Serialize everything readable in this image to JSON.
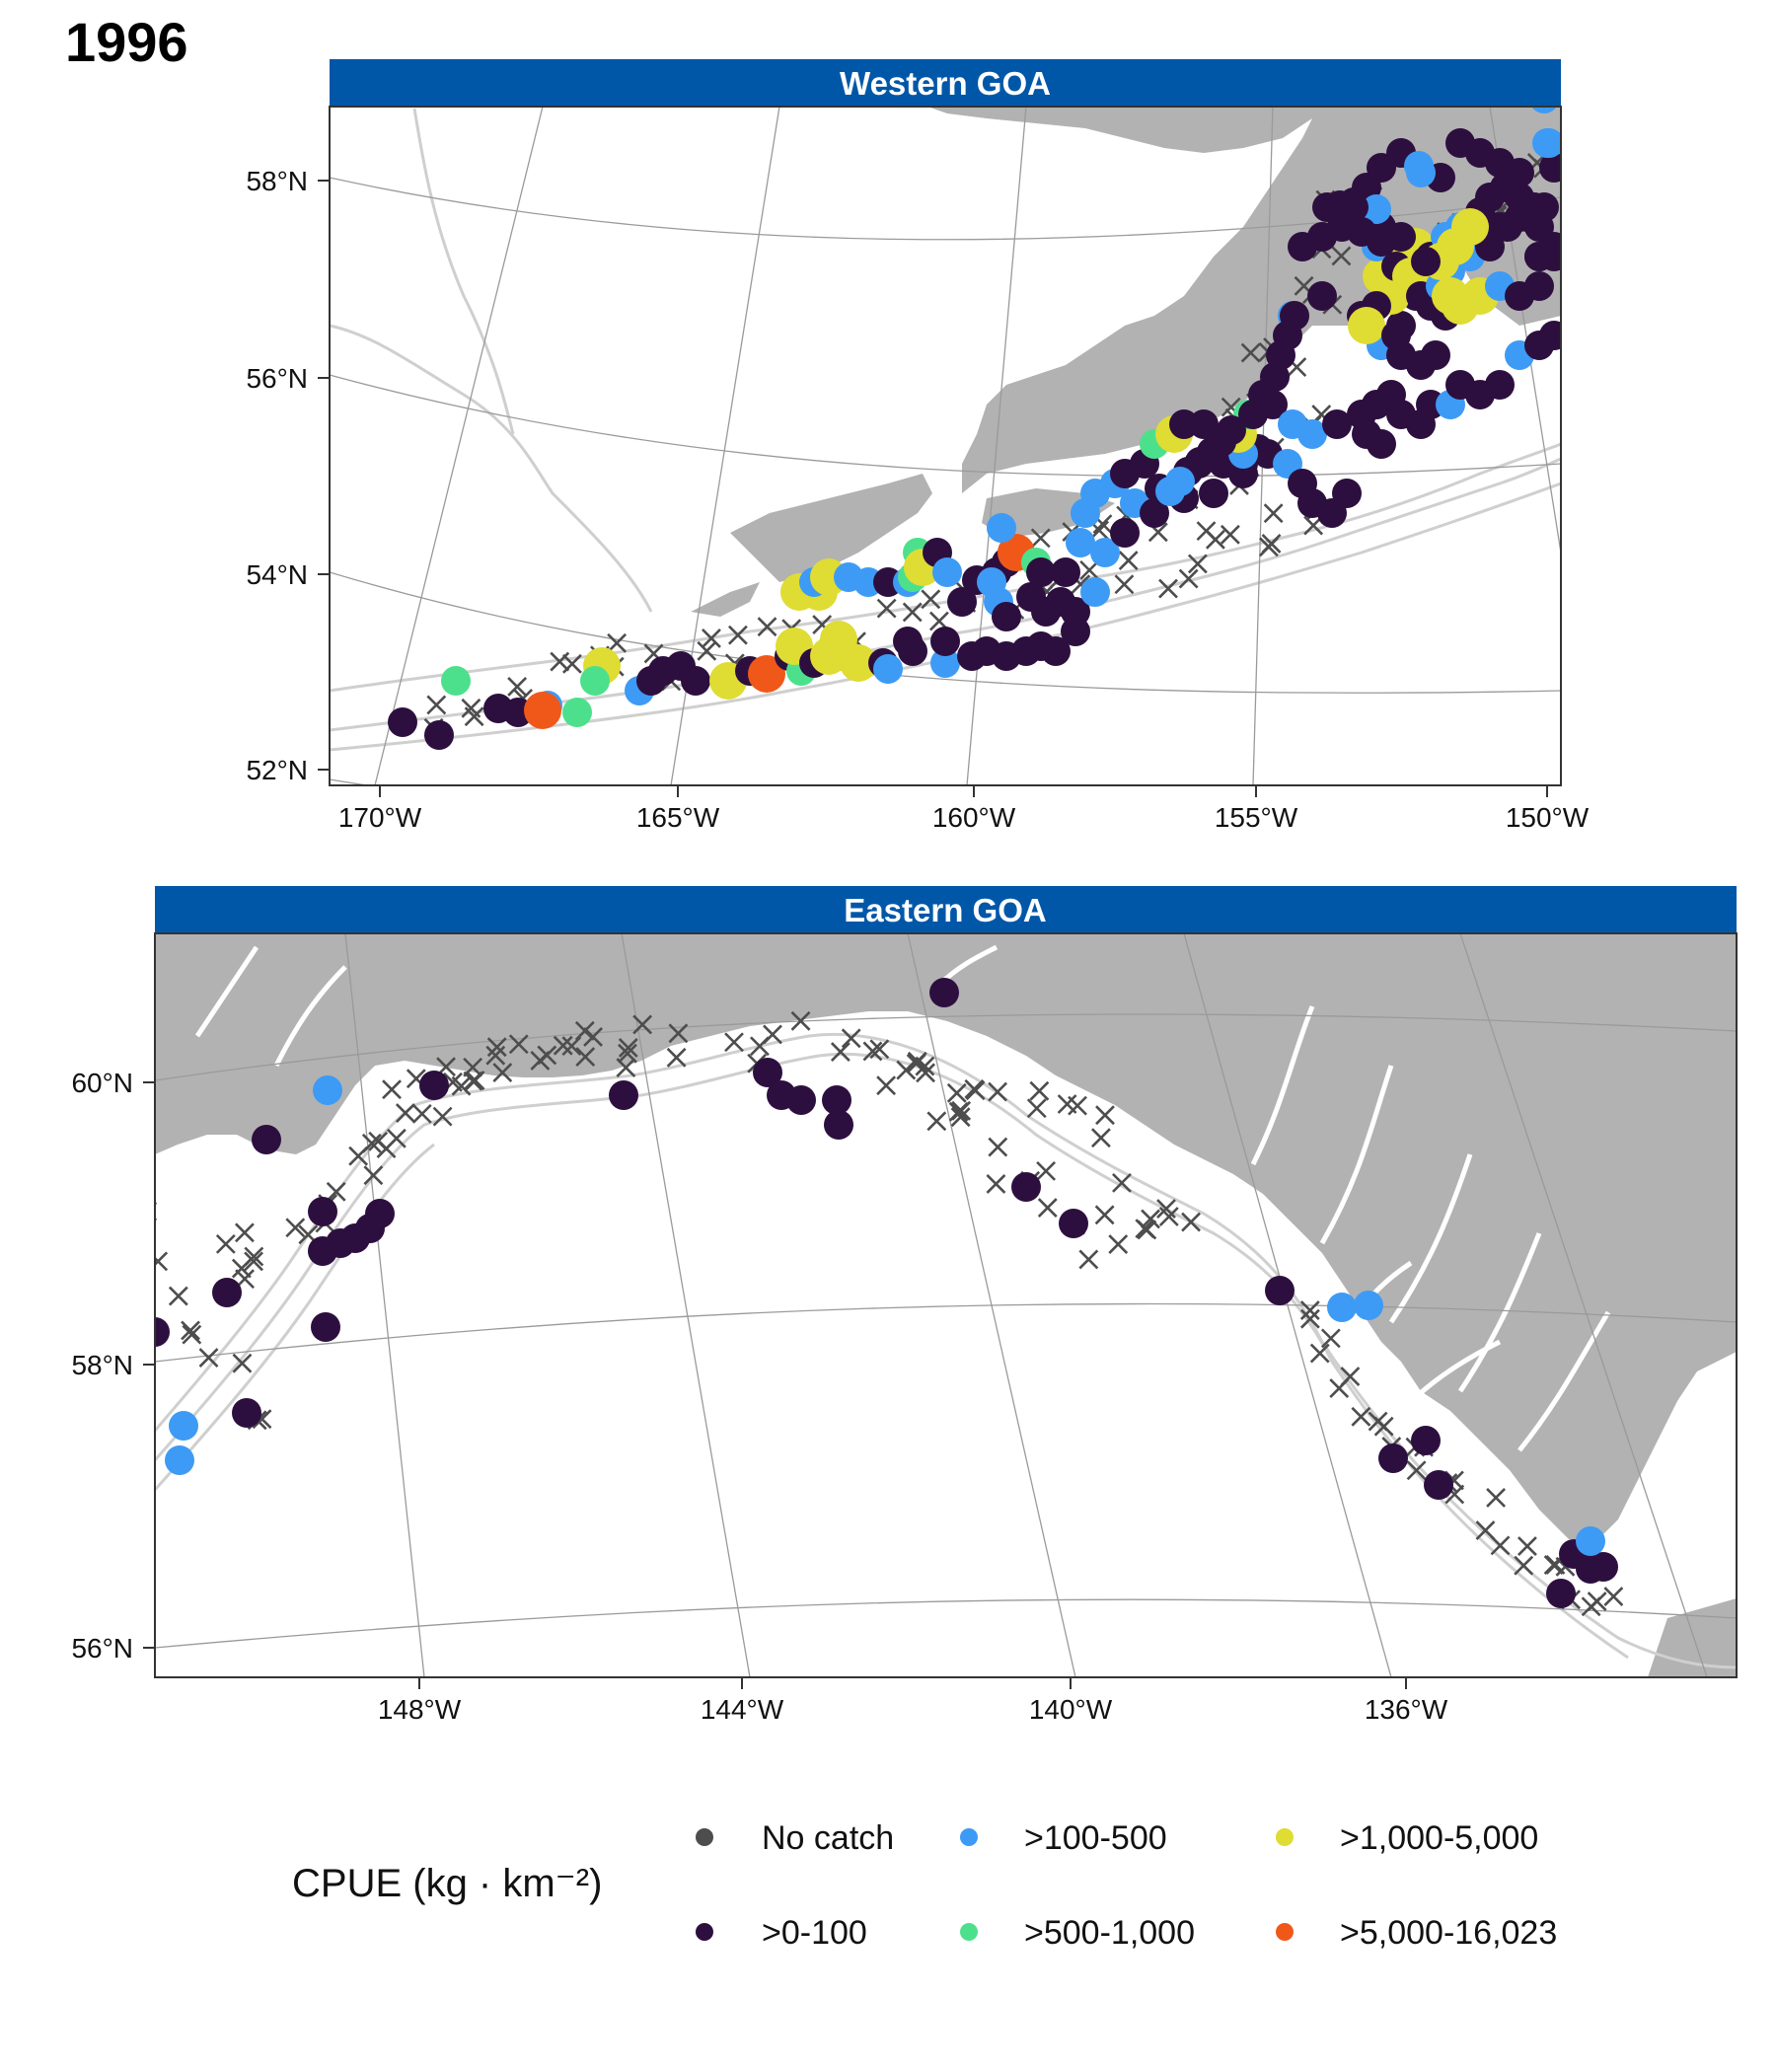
{
  "title": "1996",
  "colors": {
    "no_catch": "#4d4d4d",
    "c0_100": "#2d0f3f",
    "c100_500": "#3d9bf5",
    "c500_1000": "#4de08c",
    "c1000_5000": "#dfdc33",
    "c5000_plus": "#f0581a",
    "land": "#b2b2b2",
    "strip": "#0057a8",
    "graticule": "#9a9a9a",
    "bathy": "#cfcfcf"
  },
  "panels": {
    "western": {
      "title": "Western GOA",
      "lat_labels": [
        "58°N",
        "56°N",
        "54°N",
        "52°N"
      ],
      "lon_labels": [
        "170°W",
        "165°W",
        "160°W",
        "155°W",
        "150°W"
      ]
    },
    "eastern": {
      "title": "Eastern GOA",
      "lat_labels": [
        "60°N",
        "58°N",
        "56°N"
      ],
      "lon_labels": [
        "148°W",
        "144°W",
        "140°W",
        "136°W"
      ]
    }
  },
  "legend": {
    "title": "CPUE (kg · km⁻²)",
    "items": [
      {
        "label": "No catch",
        "color": "#4d4d4d"
      },
      {
        "label": ">0-100",
        "color": "#2d0f3f"
      },
      {
        "label": ">100-500",
        "color": "#3d9bf5"
      },
      {
        "label": ">500-1,000",
        "color": "#4de08c"
      },
      {
        "label": ">1,000-5,000",
        "color": "#dfdc33"
      },
      {
        "label": ">5,000-16,023",
        "color": "#f0581a"
      }
    ]
  }
}
